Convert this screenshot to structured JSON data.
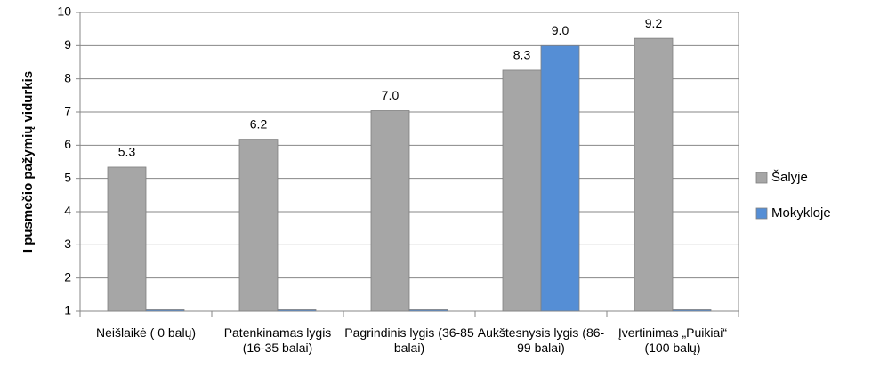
{
  "chart_data": {
    "type": "bar",
    "y_label": "I pusmečio pažymių vidurkis",
    "categories": [
      "Neišlaikė ( 0 balų)",
      "Patenkinamas lygis (16-35 balai)",
      "Pagrindinis lygis (36-85 balai)",
      "Aukštesnysis lygis (86-99 balai)",
      "Įvertinimas „Puikiai“ (100 balų)"
    ],
    "series": [
      {
        "name": "Šalyje",
        "color": "#a6a6a6",
        "values": [
          5.34,
          6.18,
          7.04,
          8.26,
          9.22
        ],
        "value_labels": [
          "5.3",
          "6.2",
          "7.0",
          "8.3",
          "9.2"
        ]
      },
      {
        "name": "Mokykloje",
        "color": "#558ed5",
        "values": [
          1,
          1,
          1,
          9,
          1
        ],
        "value_labels": [
          null,
          null,
          null,
          "9.0",
          null
        ]
      }
    ],
    "ylim": [
      1,
      10
    ],
    "yticks": [
      1,
      2,
      3,
      4,
      5,
      6,
      7,
      8,
      9,
      10
    ],
    "grid": true,
    "legend": "right"
  }
}
